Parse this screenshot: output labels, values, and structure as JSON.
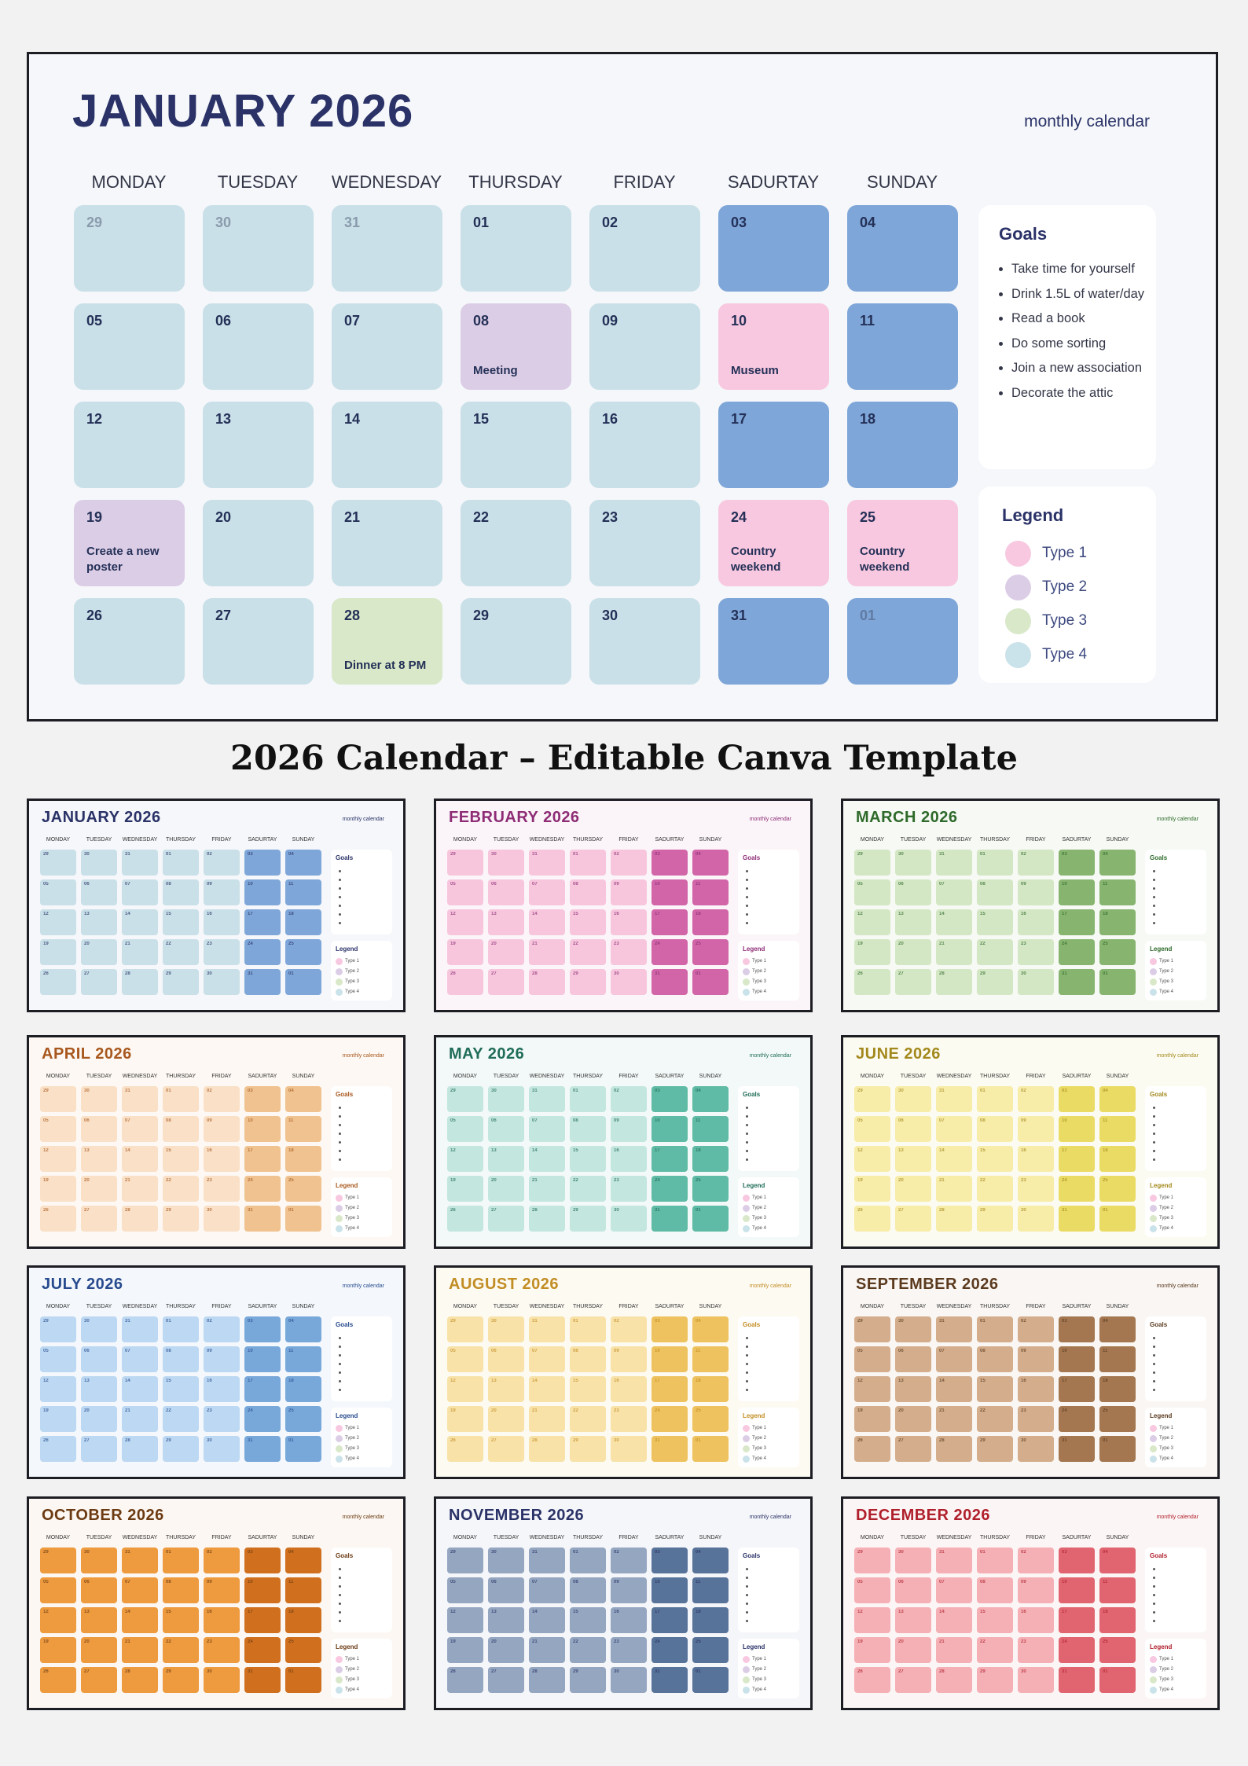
{
  "main": {
    "title": "JANUARY 2026",
    "subtitle": "monthly calendar",
    "title_color": "#2a3267",
    "accent": "#2a3267",
    "weekdays": [
      "MONDAY",
      "TUESDAY",
      "WEDNESDAY",
      "THURSDAY",
      "FRIDAY",
      "SADURTAY",
      "SUNDAY"
    ],
    "weeks": [
      [
        {
          "d": "29",
          "c": "base",
          "faded": true
        },
        {
          "d": "30",
          "c": "base",
          "faded": true
        },
        {
          "d": "31",
          "c": "base",
          "faded": true
        },
        {
          "d": "01",
          "c": "base"
        },
        {
          "d": "02",
          "c": "base"
        },
        {
          "d": "03",
          "c": "weekend"
        },
        {
          "d": "04",
          "c": "weekend"
        }
      ],
      [
        {
          "d": "05",
          "c": "base"
        },
        {
          "d": "06",
          "c": "base"
        },
        {
          "d": "07",
          "c": "base"
        },
        {
          "d": "08",
          "c": "type2",
          "note": "Meeting"
        },
        {
          "d": "09",
          "c": "base"
        },
        {
          "d": "10",
          "c": "type1",
          "note": "Museum"
        },
        {
          "d": "11",
          "c": "weekend"
        }
      ],
      [
        {
          "d": "12",
          "c": "base"
        },
        {
          "d": "13",
          "c": "base"
        },
        {
          "d": "14",
          "c": "base"
        },
        {
          "d": "15",
          "c": "base"
        },
        {
          "d": "16",
          "c": "base"
        },
        {
          "d": "17",
          "c": "weekend"
        },
        {
          "d": "18",
          "c": "weekend"
        }
      ],
      [
        {
          "d": "19",
          "c": "type2",
          "note": "Create a new poster"
        },
        {
          "d": "20",
          "c": "base"
        },
        {
          "d": "21",
          "c": "base"
        },
        {
          "d": "22",
          "c": "base"
        },
        {
          "d": "23",
          "c": "base"
        },
        {
          "d": "24",
          "c": "type1",
          "note": "Country weekend"
        },
        {
          "d": "25",
          "c": "type1",
          "note": "Country weekend"
        }
      ],
      [
        {
          "d": "26",
          "c": "base"
        },
        {
          "d": "27",
          "c": "base"
        },
        {
          "d": "28",
          "c": "type3",
          "note": "Dinner at 8 PM"
        },
        {
          "d": "29",
          "c": "base"
        },
        {
          "d": "30",
          "c": "base"
        },
        {
          "d": "31",
          "c": "weekend"
        },
        {
          "d": "01",
          "c": "weekend",
          "faded": true
        }
      ]
    ],
    "goals": {
      "title": "Goals",
      "items": [
        "Take time for yourself",
        "Drink 1.5L of water/day",
        "Read a book",
        "Do some sorting",
        "Join a new association",
        "Decorate the attic"
      ]
    },
    "legend": {
      "title": "Legend",
      "items": [
        {
          "label": "Type 1",
          "color": "#f8c8e0"
        },
        {
          "label": "Type 2",
          "color": "#dccde6"
        },
        {
          "label": "Type 3",
          "color": "#d8e8c8"
        },
        {
          "label": "Type 4",
          "color": "#cae2ea"
        }
      ]
    },
    "colors": {
      "base": "#c9e0e8",
      "weekend": "#7ea6d8",
      "type1": "#f8c8e0",
      "type2": "#dccde6",
      "type3": "#d8e8c8"
    }
  },
  "banner": "2026 Calendar – Editable Canva Template",
  "months": [
    {
      "title": "JANUARY 2026",
      "title_color": "#2a3267",
      "base": "#c9e0e8",
      "weekend": "#7ea6d8",
      "bg": "#f5f7fa"
    },
    {
      "title": "FEBRUARY 2026",
      "title_color": "#8e2c75",
      "base": "#f7c6dd",
      "weekend": "#d165a8",
      "bg": "#fbf5f9"
    },
    {
      "title": "MARCH 2026",
      "title_color": "#2e6a2a",
      "base": "#d4e7c4",
      "weekend": "#87b46f",
      "bg": "#f6f9f4"
    },
    {
      "title": "APRIL 2026",
      "title_color": "#a8581e",
      "base": "#fae0c6",
      "weekend": "#efc28f",
      "bg": "#fdf8f3"
    },
    {
      "title": "MAY 2026",
      "title_color": "#1f6c58",
      "base": "#c3e6df",
      "weekend": "#5fbba5",
      "bg": "#f3f9f8"
    },
    {
      "title": "JUNE 2026",
      "title_color": "#a3891c",
      "base": "#f7eca8",
      "weekend": "#eadb65",
      "bg": "#fcfbf1"
    },
    {
      "title": "JULY 2026",
      "title_color": "#274b8e",
      "base": "#bcd8f2",
      "weekend": "#78a8da",
      "bg": "#f4f8fc"
    },
    {
      "title": "AUGUST 2026",
      "title_color": "#c28d24",
      "base": "#f8e2a8",
      "weekend": "#eec25e",
      "bg": "#fdfaf2"
    },
    {
      "title": "SEPTEMBER 2026",
      "title_color": "#5b3a1e",
      "base": "#d4ae8c",
      "weekend": "#a47750",
      "bg": "#f9f6f3"
    },
    {
      "title": "OCTOBER 2026",
      "title_color": "#6b3a12",
      "base": "#ee9a3e",
      "weekend": "#d0701e",
      "bg": "#fcf7f2"
    },
    {
      "title": "NOVEMBER 2026",
      "title_color": "#2a3267",
      "base": "#94a6c0",
      "weekend": "#587399",
      "bg": "#f5f6f9"
    },
    {
      "title": "DECEMBER 2026",
      "title_color": "#b0202c",
      "base": "#f5b0b6",
      "weekend": "#e06570",
      "bg": "#fcf5f5"
    }
  ],
  "mini_labels": {
    "subtitle": "monthly calendar",
    "goals_title": "Goals",
    "legend_title": "Legend"
  }
}
